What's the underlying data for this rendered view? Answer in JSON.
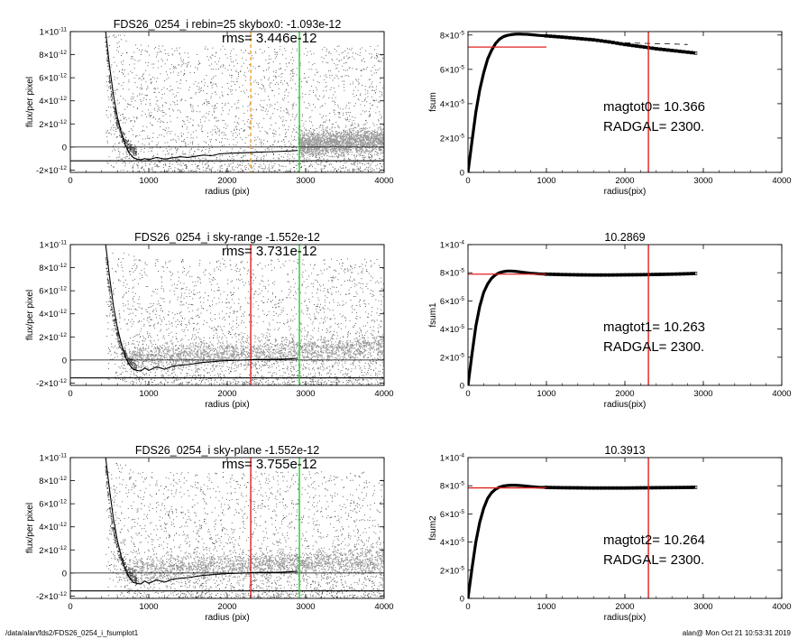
{
  "footer": {
    "path": "/data/alan/fds2/FDS26_0254_i_fsumplot1",
    "stamp": "alan@  Mon Oct 21 10:53:31 2019"
  },
  "colors": {
    "scatter_dark": "#444444",
    "scatter_light": "#9a9a9a",
    "profile": "#000000",
    "red_line": "#e02020",
    "green_line": "#22cc22",
    "orange_line": "#f0a030"
  },
  "chart_data": [
    {
      "type": "scatter",
      "id": "flux-top",
      "title": "FDS26_0254_i rebin=25    skybox0: -1.093e-12",
      "rms_text": "rms= 3.446e-12",
      "xlabel": "radius (pix)",
      "ylabel": "flux/per pixel",
      "xlim": [
        0,
        4000
      ],
      "ylim": [
        -2.2e-12,
        1e-11
      ],
      "xticks": [
        "0",
        "1000",
        "2000",
        "3000",
        "4000"
      ],
      "ytick_values": [
        -2e-12,
        0,
        2e-12,
        4e-12,
        6e-12,
        8e-12,
        1e-11
      ],
      "ytick_labels": [
        [
          "-2×10",
          "-12"
        ],
        [
          "0",
          ""
        ],
        [
          "2×10",
          "-12"
        ],
        [
          "4×10",
          "-12"
        ],
        [
          "6×10",
          "-12"
        ],
        [
          "8×10",
          "-12"
        ],
        [
          "1×10",
          "-11"
        ]
      ],
      "hlines": [
        0,
        -1.2e-12
      ],
      "vlines": [
        {
          "x": 2300,
          "color": "orange",
          "dashed": true
        },
        {
          "x": 2920,
          "color": "green",
          "dashed": false
        }
      ],
      "profile_x": [
        450,
        500,
        550,
        600,
        650,
        700,
        750,
        800,
        850,
        900,
        950,
        1000,
        1100,
        1200,
        1300,
        1400,
        1500,
        1600,
        1700,
        1800,
        1900,
        2000,
        2200,
        2400,
        2600,
        2800,
        2900
      ],
      "profile_y": [
        1e-11,
        7e-12,
        4.5e-12,
        2.6e-12,
        1.2e-12,
        2e-13,
        -5e-13,
        -9e-13,
        -1.05e-12,
        -1.1e-12,
        -1e-12,
        -1.1e-12,
        -9e-13,
        -1.05e-12,
        -9.5e-13,
        -8.5e-13,
        -9e-13,
        -8e-13,
        -7e-13,
        -7.5e-13,
        -6e-13,
        -5.5e-13,
        -5e-13,
        -4.5e-13,
        -4e-13,
        -3.5e-13,
        -3e-13
      ]
    },
    {
      "type": "line",
      "id": "fsum-top",
      "title": "",
      "xlabel": "radius(pix)",
      "ylabel": "fsum",
      "xlim": [
        0,
        4000
      ],
      "ylim": [
        0,
        8.2e-05
      ],
      "xticks": [
        "0",
        "1000",
        "2000",
        "3000",
        "4000"
      ],
      "ytick_values": [
        0,
        2e-05,
        4e-05,
        6e-05,
        8e-05
      ],
      "ytick_labels": [
        [
          "0",
          ""
        ],
        [
          "2×10",
          "-5"
        ],
        [
          "4×10",
          "-5"
        ],
        [
          "6×10",
          "-5"
        ],
        [
          "8×10",
          "-5"
        ]
      ],
      "annotations": [
        "magtot0=  10.366",
        "RADGAL=   2300."
      ],
      "hline_segment": {
        "y": 7.3e-05,
        "x0": 0,
        "x1": 1000
      },
      "vline_x": 2300,
      "curve_x": [
        0,
        50,
        100,
        150,
        200,
        250,
        300,
        350,
        400,
        450,
        500,
        550,
        600,
        650,
        700,
        750,
        800,
        900,
        1000,
        1200,
        1400,
        1600,
        1800,
        2000,
        2200,
        2400,
        2600,
        2800,
        2900
      ],
      "curve_y": [
        0,
        1.8e-05,
        3.5e-05,
        4.8e-05,
        5.8e-05,
        6.6e-05,
        7.1e-05,
        7.5e-05,
        7.75e-05,
        7.9e-05,
        7.98e-05,
        8.02e-05,
        8.05e-05,
        8.06e-05,
        8.05e-05,
        8.04e-05,
        8.02e-05,
        7.98e-05,
        7.95e-05,
        7.88e-05,
        7.8e-05,
        7.72e-05,
        7.6e-05,
        7.45e-05,
        7.33e-05,
        7.2e-05,
        7.1e-05,
        7e-05,
        6.95e-05
      ],
      "dashed_x": [
        2000,
        2200,
        2400,
        2600,
        2800
      ],
      "dashed_y": [
        7.55e-05,
        7.52e-05,
        7.5e-05,
        7.48e-05,
        7.45e-05
      ]
    },
    {
      "type": "scatter",
      "id": "flux-mid",
      "title": "FDS26_0254_i sky-range -1.552e-12",
      "rms_text": "rms= 3.731e-12",
      "xlabel": "radius (pix)",
      "ylabel": "flux/per pixel",
      "xlim": [
        0,
        4000
      ],
      "ylim": [
        -2.2e-12,
        1e-11
      ],
      "xticks": [
        "0",
        "1000",
        "2000",
        "3000",
        "4000"
      ],
      "ytick_values": [
        -2e-12,
        0,
        2e-12,
        4e-12,
        6e-12,
        8e-12,
        1e-11
      ],
      "ytick_labels": [
        [
          "-2×10",
          "-12"
        ],
        [
          "0",
          ""
        ],
        [
          "2×10",
          "-12"
        ],
        [
          "4×10",
          "-12"
        ],
        [
          "6×10",
          "-12"
        ],
        [
          "8×10",
          "-12"
        ],
        [
          "1×10",
          "-11"
        ]
      ],
      "hlines": [
        0,
        -1.55e-12
      ],
      "vlines": [
        {
          "x": 2300,
          "color": "red",
          "dashed": false
        },
        {
          "x": 2920,
          "color": "green",
          "dashed": false
        }
      ],
      "profile_x": [
        450,
        500,
        550,
        600,
        650,
        700,
        750,
        800,
        850,
        900,
        950,
        1000,
        1100,
        1200,
        1300,
        1400,
        1500,
        1600,
        1700,
        1800,
        1900,
        2000,
        2200,
        2400,
        2600,
        2800,
        2900
      ],
      "profile_y": [
        1e-11,
        7.2e-12,
        4.7e-12,
        2.8e-12,
        1.4e-12,
        3e-13,
        -4e-13,
        -8e-13,
        -9e-13,
        -9.5e-13,
        -7e-13,
        -9e-13,
        -6e-13,
        -8e-13,
        -5.5e-13,
        -4.5e-13,
        -4e-13,
        -3e-13,
        -2e-13,
        -1.5e-13,
        -1e-13,
        -5e-14,
        0,
        5e-14,
        5e-14,
        1e-13,
        1.5e-13
      ]
    },
    {
      "type": "line",
      "id": "fsum-mid",
      "title": "10.2869",
      "xlabel": "radius(pix)",
      "ylabel": "fsum1",
      "xlim": [
        0,
        4000
      ],
      "ylim": [
        0,
        0.0001
      ],
      "xticks": [
        "0",
        "1000",
        "2000",
        "3000",
        "4000"
      ],
      "ytick_values": [
        0,
        2e-05,
        4e-05,
        6e-05,
        8e-05,
        0.0001
      ],
      "ytick_labels": [
        [
          "0",
          ""
        ],
        [
          "2×10",
          "-5"
        ],
        [
          "4×10",
          "-5"
        ],
        [
          "6×10",
          "-5"
        ],
        [
          "8×10",
          "-5"
        ],
        [
          "1×10",
          "-4"
        ]
      ],
      "annotations": [
        "magtot1=  10.263",
        "RADGAL=   2300."
      ],
      "hline_segment": {
        "y": 7.9e-05,
        "x0": 0,
        "x1": 1000
      },
      "vline_x": 2300,
      "curve_x": [
        0,
        50,
        100,
        150,
        200,
        250,
        300,
        350,
        400,
        450,
        500,
        550,
        600,
        650,
        700,
        800,
        900,
        1000,
        1200,
        1400,
        1600,
        1800,
        2000,
        2200,
        2400,
        2600,
        2800,
        2900
      ],
      "curve_y": [
        0,
        2.2e-05,
        4.2e-05,
        5.6e-05,
        6.6e-05,
        7.2e-05,
        7.6e-05,
        7.85e-05,
        8e-05,
        8.08e-05,
        8.12e-05,
        8.12e-05,
        8.1e-05,
        8.07e-05,
        8.03e-05,
        7.97e-05,
        7.92e-05,
        7.9e-05,
        7.87e-05,
        7.85e-05,
        7.84e-05,
        7.84e-05,
        7.85e-05,
        7.86e-05,
        7.88e-05,
        7.9e-05,
        7.93e-05,
        7.95e-05
      ]
    },
    {
      "type": "scatter",
      "id": "flux-bot",
      "title": "FDS26_0254_i sky-plane -1.552e-12",
      "rms_text": "rms= 3.755e-12",
      "xlabel": "radius (pix)",
      "ylabel": "flux/per pixel",
      "xlim": [
        0,
        4000
      ],
      "ylim": [
        -2.2e-12,
        1e-11
      ],
      "xticks": [
        "0",
        "1000",
        "2000",
        "3000",
        "4000"
      ],
      "ytick_values": [
        -2e-12,
        0,
        2e-12,
        4e-12,
        6e-12,
        8e-12,
        1e-11
      ],
      "ytick_labels": [
        [
          "-2×10",
          "-12"
        ],
        [
          "0",
          ""
        ],
        [
          "2×10",
          "-12"
        ],
        [
          "4×10",
          "-12"
        ],
        [
          "6×10",
          "-12"
        ],
        [
          "8×10",
          "-12"
        ],
        [
          "1×10",
          "-11"
        ]
      ],
      "hlines": [
        0,
        -1.55e-12
      ],
      "vlines": [
        {
          "x": 2300,
          "color": "red",
          "dashed": false
        },
        {
          "x": 2920,
          "color": "green",
          "dashed": false
        }
      ],
      "profile_x": [
        450,
        500,
        550,
        600,
        650,
        700,
        750,
        800,
        850,
        900,
        950,
        1000,
        1100,
        1200,
        1300,
        1400,
        1500,
        1600,
        1700,
        1800,
        1900,
        2000,
        2200,
        2400,
        2600,
        2800,
        2900
      ],
      "profile_y": [
        1e-11,
        7.2e-12,
        4.7e-12,
        2.8e-12,
        1.4e-12,
        3e-13,
        -4e-13,
        -8e-13,
        -9e-13,
        -9.5e-13,
        -7e-13,
        -9e-13,
        -6e-13,
        -8e-13,
        -5.5e-13,
        -4.5e-13,
        -4e-13,
        -3e-13,
        -2e-13,
        -1.5e-13,
        -1e-13,
        -5e-14,
        0,
        5e-14,
        5e-14,
        1e-13,
        1.5e-13
      ]
    },
    {
      "type": "line",
      "id": "fsum-bot",
      "title": "10.3913",
      "xlabel": "radius(pix)",
      "ylabel": "fsum2",
      "xlim": [
        0,
        4000
      ],
      "ylim": [
        0,
        0.0001
      ],
      "xticks": [
        "0",
        "1000",
        "2000",
        "3000",
        "4000"
      ],
      "ytick_values": [
        0,
        2e-05,
        4e-05,
        6e-05,
        8e-05,
        0.0001
      ],
      "ytick_labels": [
        [
          "0",
          ""
        ],
        [
          "2×10",
          "-5"
        ],
        [
          "4×10",
          "-5"
        ],
        [
          "6×10",
          "-5"
        ],
        [
          "8×10",
          "-5"
        ],
        [
          "1×10",
          "-4"
        ]
      ],
      "annotations": [
        "magtot2=  10.264",
        "RADGAL=   2300."
      ],
      "hline_segment": {
        "y": 7.85e-05,
        "x0": 0,
        "x1": 1000
      },
      "vline_x": 2300,
      "curve_x": [
        0,
        50,
        100,
        150,
        200,
        250,
        300,
        350,
        400,
        450,
        500,
        550,
        600,
        650,
        700,
        800,
        900,
        1000,
        1200,
        1400,
        1600,
        1800,
        2000,
        2200,
        2400,
        2600,
        2800,
        2900
      ],
      "curve_y": [
        0,
        2.1e-05,
        4e-05,
        5.4e-05,
        6.4e-05,
        7.1e-05,
        7.5e-05,
        7.75e-05,
        7.9e-05,
        7.98e-05,
        8.02e-05,
        8.04e-05,
        8.04e-05,
        8.02e-05,
        8e-05,
        7.94e-05,
        7.9e-05,
        7.88e-05,
        7.86e-05,
        7.85e-05,
        7.84e-05,
        7.84e-05,
        7.84e-05,
        7.85e-05,
        7.86e-05,
        7.87e-05,
        7.88e-05,
        7.89e-05
      ]
    }
  ]
}
